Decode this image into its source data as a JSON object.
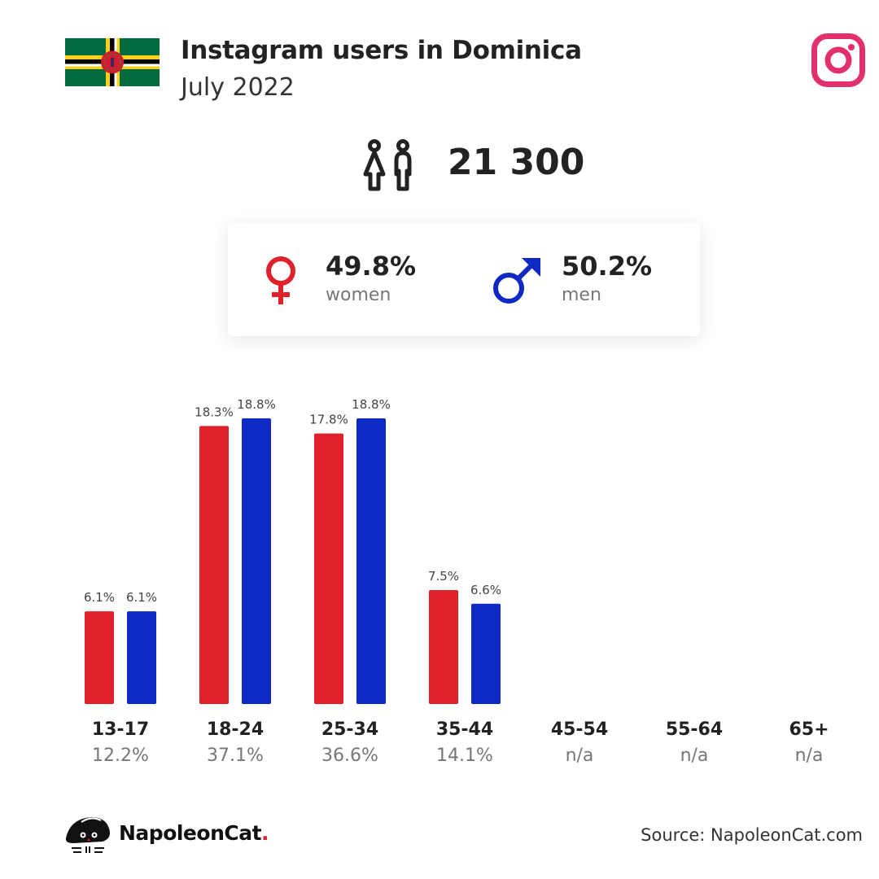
{
  "header": {
    "title": "Instagram users in Dominica",
    "subtitle": "July 2022"
  },
  "total": {
    "value": "21 300"
  },
  "gender": {
    "women_pct": "49.8%",
    "women_label": "women",
    "men_pct": "50.2%",
    "men_label": "men"
  },
  "colors": {
    "women": "#e0212b",
    "men": "#0f2ac4",
    "instagram": "#e1306c"
  },
  "icons": {
    "flag": "dominica-flag-icon",
    "instagram": "instagram-icon",
    "users": "users-icon",
    "female": "female-icon",
    "male": "male-icon",
    "brand": "napoleoncat-logo"
  },
  "chart_data": {
    "type": "bar",
    "categories": [
      "13-17",
      "18-24",
      "25-34",
      "35-44",
      "45-54",
      "55-64",
      "65+"
    ],
    "category_totals": [
      "12.2%",
      "37.1%",
      "36.6%",
      "14.1%",
      "n/a",
      "n/a",
      "n/a"
    ],
    "series": [
      {
        "name": "women",
        "values": [
          6.1,
          18.3,
          17.8,
          7.5,
          null,
          null,
          null
        ],
        "labels": [
          "6.1%",
          "18.3%",
          "17.8%",
          "7.5%",
          null,
          null,
          null
        ]
      },
      {
        "name": "men",
        "values": [
          6.1,
          18.8,
          18.8,
          6.6,
          null,
          null,
          null
        ],
        "labels": [
          "6.1%",
          "18.8%",
          "18.8%",
          "6.6%",
          null,
          null,
          null
        ]
      }
    ],
    "ylim": [
      0,
      18.8
    ],
    "grid": false,
    "legend": "none"
  },
  "footer": {
    "brand_name": "NapoleonCat",
    "brand_dot": ".",
    "source": "Source: NapoleonCat.com"
  }
}
